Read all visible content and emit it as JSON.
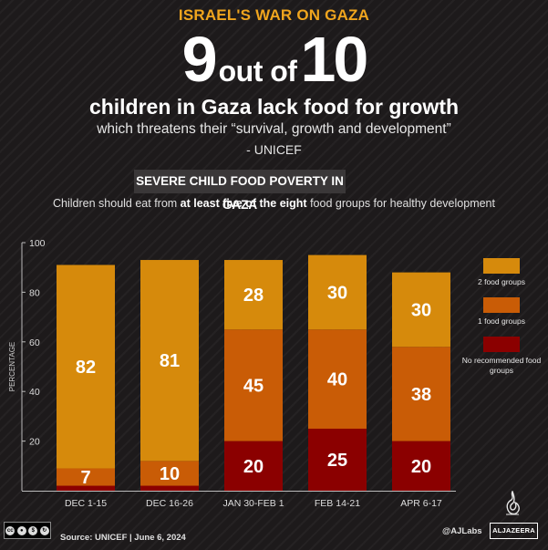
{
  "header": {
    "kicker": "ISRAEL'S WAR ON GAZA",
    "headline_num1": "9",
    "headline_mid": "out of",
    "headline_num2": "10",
    "subheadline": "children in Gaza lack food for growth",
    "quote": "which threatens their “survival, growth and development”",
    "attribution": "- UNICEF"
  },
  "section_label": "SEVERE CHILD FOOD POVERTY IN GAZA",
  "note": {
    "prefix": "Children should eat from ",
    "bold": "at least five of the eight",
    "suffix": " food groups for healthy development"
  },
  "colors": {
    "two_groups": "#d68a0c",
    "one_group": "#c95c06",
    "none": "#8b0000",
    "accent": "#f0a51e"
  },
  "chart_data": {
    "type": "bar",
    "stacked": true,
    "title": "SEVERE CHILD FOOD POVERTY IN GAZA",
    "xlabel": "",
    "ylabel": "PERCENTAGE",
    "ylim": [
      0,
      100
    ],
    "yticks": [
      20,
      40,
      60,
      80,
      100
    ],
    "grid": false,
    "legend_position": "right",
    "categories": [
      "DEC 1-15",
      "DEC 16-26",
      "JAN 30-FEB 1",
      "FEB 14-21",
      "APR 6-17"
    ],
    "series": [
      {
        "name": "No recommended food groups",
        "color": "#8b0000",
        "values": [
          2,
          2,
          20,
          25,
          20
        ],
        "labels": [
          "",
          "",
          "20",
          "25",
          "20"
        ]
      },
      {
        "name": "1 food groups",
        "color": "#c95c06",
        "values": [
          7,
          10,
          45,
          40,
          38
        ],
        "labels": [
          "7",
          "10",
          "45",
          "40",
          "38"
        ]
      },
      {
        "name": "2 food groups",
        "color": "#d68a0c",
        "values": [
          82,
          81,
          28,
          30,
          30
        ],
        "labels": [
          "82",
          "81",
          "28",
          "30",
          "30"
        ]
      }
    ]
  },
  "legend": [
    {
      "label": "2 food groups",
      "color": "#d68a0c"
    },
    {
      "label": "1 food groups",
      "color": "#c95c06"
    },
    {
      "label": "No recommended food groups",
      "color": "#8b0000"
    }
  ],
  "footer": {
    "source": "Source: UNICEF  |  June 6, 2024",
    "handle": "@AJLabs",
    "brand": "ALJAZEERA",
    "license_labels": [
      "cc",
      "BY",
      "NC",
      "SA"
    ]
  }
}
